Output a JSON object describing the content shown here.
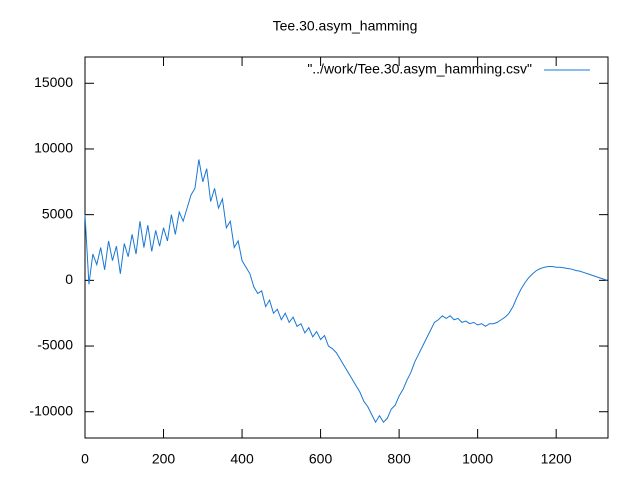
{
  "chart_data": {
    "type": "line",
    "title": "Tee.30.asym_hamming",
    "x": [
      0,
      10,
      20,
      30,
      40,
      50,
      60,
      70,
      80,
      90,
      100,
      110,
      120,
      130,
      140,
      150,
      160,
      170,
      180,
      190,
      200,
      210,
      220,
      230,
      240,
      250,
      260,
      270,
      280,
      290,
      300,
      310,
      320,
      330,
      340,
      350,
      360,
      370,
      380,
      390,
      400,
      410,
      420,
      430,
      440,
      450,
      460,
      470,
      480,
      490,
      500,
      510,
      520,
      530,
      540,
      550,
      560,
      570,
      580,
      590,
      600,
      610,
      620,
      630,
      640,
      650,
      660,
      670,
      680,
      690,
      700,
      710,
      720,
      730,
      740,
      750,
      760,
      770,
      780,
      790,
      800,
      810,
      820,
      830,
      840,
      850,
      860,
      870,
      880,
      890,
      900,
      910,
      920,
      930,
      940,
      950,
      960,
      970,
      980,
      990,
      1000,
      1010,
      1020,
      1030,
      1040,
      1050,
      1060,
      1070,
      1080,
      1090,
      1100,
      1110,
      1120,
      1130,
      1140,
      1150,
      1160,
      1170,
      1180,
      1190,
      1200,
      1210,
      1220,
      1230,
      1240,
      1250,
      1260,
      1270,
      1280,
      1290,
      1300,
      1310,
      1320,
      1330
    ],
    "series": [
      {
        "name": "\"../work/Tee.30.asym_hamming.csv\"",
        "color": "#1a78d4",
        "values": [
          5000,
          -300,
          2000,
          1200,
          2500,
          800,
          3000,
          1500,
          2600,
          500,
          2800,
          1800,
          3500,
          2000,
          4500,
          2500,
          4200,
          2200,
          3800,
          2600,
          4000,
          3000,
          5000,
          3500,
          5200,
          4500,
          5500,
          6500,
          7000,
          9200,
          7500,
          8500,
          6000,
          7000,
          5500,
          6200,
          4000,
          4500,
          2500,
          3000,
          1500,
          1000,
          500,
          -500,
          -1000,
          -800,
          -2000,
          -1500,
          -2500,
          -2200,
          -3000,
          -2500,
          -3200,
          -2800,
          -3500,
          -3300,
          -4000,
          -3600,
          -4300,
          -3900,
          -4500,
          -4200,
          -5000,
          -5200,
          -5500,
          -6000,
          -6500,
          -7000,
          -7500,
          -8000,
          -8500,
          -9200,
          -9600,
          -10200,
          -10800,
          -10300,
          -10800,
          -10500,
          -9800,
          -9500,
          -8800,
          -8300,
          -7600,
          -7000,
          -6200,
          -5600,
          -5000,
          -4400,
          -3800,
          -3200,
          -3000,
          -2700,
          -2900,
          -2700,
          -3000,
          -2900,
          -3200,
          -3100,
          -3300,
          -3200,
          -3400,
          -3300,
          -3500,
          -3300,
          -3300,
          -3200,
          -3000,
          -2800,
          -2500,
          -2000,
          -1300,
          -700,
          -200,
          200,
          500,
          750,
          900,
          1000,
          1050,
          1050,
          1000,
          1000,
          950,
          900,
          850,
          750,
          700,
          600,
          500,
          400,
          300,
          200,
          100,
          0
        ]
      }
    ],
    "xlim": [
      0,
      1332
    ],
    "ylim": [
      -12000,
      17000
    ],
    "xticks": [
      0,
      200,
      400,
      600,
      800,
      1000,
      1200
    ],
    "yticks": [
      -10000,
      -5000,
      0,
      5000,
      10000,
      15000
    ],
    "legend": "top-right"
  }
}
